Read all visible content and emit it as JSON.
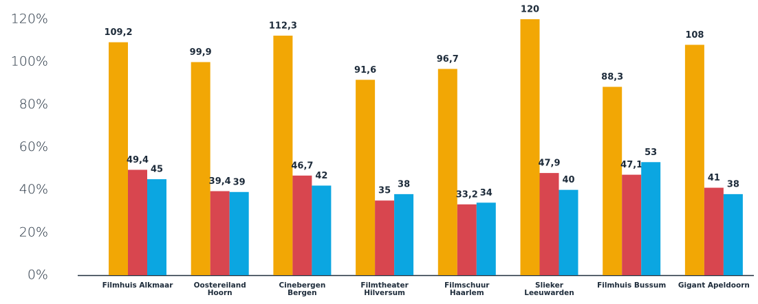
{
  "chart_data": {
    "type": "bar",
    "categories": [
      "Filmhuis Alkmaar",
      "Oostereiland Hoorn",
      "Cinebergen Bergen",
      "Filmtheater Hilversum",
      "Filmschuur Haarlem",
      "Slieker Leeuwarden",
      "Filmhuis Bussum",
      "Gigant Apeldoorn"
    ],
    "series": [
      {
        "color": "#f2a705",
        "values": [
          109.2,
          99.9,
          112.3,
          91.6,
          96.7,
          120,
          88.3,
          108
        ],
        "value_labels": [
          "109,2",
          "99,9",
          "112,3",
          "91,6",
          "96,7",
          "120",
          "88,3",
          "108"
        ]
      },
      {
        "color": "#d8464f",
        "values": [
          49.4,
          39.4,
          46.7,
          35,
          33.2,
          47.9,
          47.1,
          41
        ],
        "value_labels": [
          "49,4",
          "39,4",
          "46,7",
          "35",
          "33,2",
          "47,9",
          "47,1",
          "41"
        ]
      },
      {
        "color": "#0ba6e1",
        "values": [
          45,
          39,
          42,
          38,
          34,
          40,
          53,
          38
        ],
        "value_labels": [
          "45",
          "39",
          "42",
          "38",
          "34",
          "40",
          "53",
          "38"
        ]
      }
    ],
    "ylim": [
      0,
      120
    ],
    "yticks": [
      {
        "value": 0,
        "label": "0%"
      },
      {
        "value": 20,
        "label": "20%"
      },
      {
        "value": 40,
        "label": "40%"
      },
      {
        "value": 60,
        "label": "60%"
      },
      {
        "value": 80,
        "label": "80%"
      },
      {
        "value": 100,
        "label": "100%"
      },
      {
        "value": 120,
        "label": "120%"
      }
    ],
    "grid": false
  }
}
